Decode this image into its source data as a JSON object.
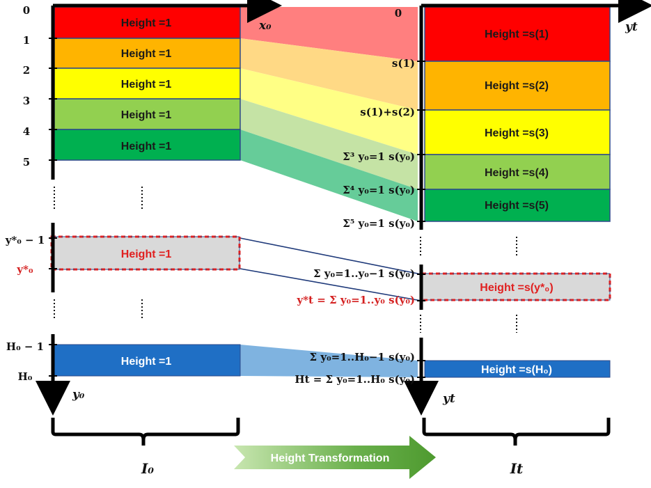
{
  "left_blocks": [
    {
      "label": "Height =1",
      "color": "#ff0000"
    },
    {
      "label": "Height =1",
      "color": "#ffb400"
    },
    {
      "label": "Height =1",
      "color": "#ffff00"
    },
    {
      "label": "Height =1",
      "color": "#92d050"
    },
    {
      "label": "Height =1",
      "color": "#00b050"
    }
  ],
  "right_blocks": [
    {
      "label": "Height =s(1)",
      "color": "#ff0000"
    },
    {
      "label": "Height =s(2)",
      "color": "#ffb400"
    },
    {
      "label": "Height =s(3)",
      "color": "#ffff00"
    },
    {
      "label": "Height =s(4)",
      "color": "#92d050"
    },
    {
      "label": "Height =s(5)",
      "color": "#00b050"
    }
  ],
  "band_colors": [
    "#ff7f7f",
    "#ffd985",
    "#ffff85",
    "#c5e3a5",
    "#66cc99"
  ],
  "left_ticks": [
    "0",
    "1",
    "2",
    "3",
    "4",
    "5"
  ],
  "right_ticks": [
    "0",
    "s(1)",
    "s(1)+s(2)",
    "Σ³ y₀=1 s(y₀)",
    "Σ⁴ y₀=1 s(y₀)",
    "Σ⁵ y₀=1 s(y₀)"
  ],
  "highlight_left": {
    "label": "Height =1",
    "tick_above": "y*₀ − 1",
    "tick_below": "y*₀"
  },
  "highlight_right": {
    "label": "Height =s(y*₀)",
    "tick_above": "Σ y₀=1..y₀−1 s(y₀)",
    "tick_below": "y*t = Σ y₀=1..y₀ s(y₀)"
  },
  "bottom_left": {
    "label": "Height =1",
    "color": "#1f6fc5",
    "tick_above": "H₀ − 1",
    "tick_below": "H₀"
  },
  "bottom_right": {
    "label": "Height =s(H₀)",
    "color": "#1f6fc5",
    "tick_above": "Σ y₀=1..H₀−1 s(y₀)",
    "tick_below": "Ht = Σ y₀=1..H₀ s(y₀)"
  },
  "axes": {
    "x_left": "x₀",
    "y_left": "y₀",
    "y_right_top": "yt",
    "y_right_bottom": "yt"
  },
  "image_names": {
    "left": "I₀",
    "right": "It"
  },
  "transform_label": "Height Transformation",
  "colors": {
    "highlight_fill": "#d9d9d9",
    "highlight_border": "#e02020",
    "outline": "#2e4a8a",
    "arrow_green": "#6ab04c"
  }
}
